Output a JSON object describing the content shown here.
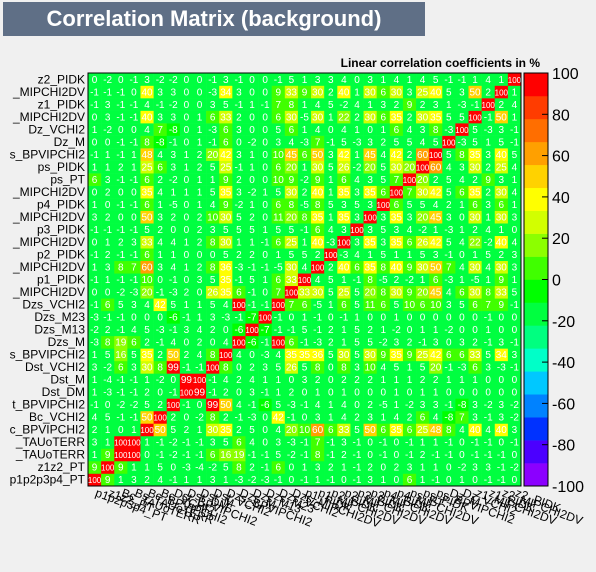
{
  "title": "Correlation Matrix (background)",
  "subtitle": "Linear correlation coefficients in %",
  "colors": {
    "background": "#f0f0f0",
    "title_bg": "#5f6f86",
    "cell_default": "#00ff40",
    "palette": [
      "#8b00ff",
      "#4b00ff",
      "#0032ff",
      "#0082ff",
      "#00c8ff",
      "#00ffc8",
      "#00ff80",
      "#00ff40",
      "#00ff00",
      "#40ff00",
      "#8cff00",
      "#d2ff00",
      "#ffff00",
      "#ffd200",
      "#ffa000",
      "#ff6e00",
      "#ff3c00",
      "#ff0000"
    ]
  },
  "chart_data": {
    "type": "heatmap",
    "title": "Correlation Matrix (background)",
    "subtitle": "Linear correlation coefficients in %",
    "zlim": [
      -100,
      100
    ],
    "zticks": [
      -100,
      -80,
      -60,
      -40,
      -20,
      0,
      20,
      40,
      60,
      80,
      100
    ],
    "variables": [
      "p1p2p3p4_PT",
      "z1z2_PT",
      "Bc_TAUoTERR",
      "Bs_TAUoTERR",
      "Bc_BPVIPCHI2",
      "Bc_VCHI2",
      "Dst_BPVIPCHI2",
      "Dst_DM",
      "Dst_M",
      "Dst_VCHI2",
      "Dzs_BPVIPCHI2",
      "Dzs_M",
      "Dzs_M13",
      "Dzs_M23",
      "Dzs_VCHI2",
      "Dzs_MIPCHI2DV",
      "p1_PIDK",
      "p1_MIPCHI2DV",
      "p2_PIDK",
      "p2_MIPCHI2DV",
      "p3_PIDK",
      "p3_MIPCHI2DV",
      "p4_PIDK",
      "p4_MIPCHI2DV",
      "ps_PT",
      "ps_PIDK",
      "ps_BPVIPCHI2",
      "Dz_M",
      "Dz_VCHI2",
      "z1_MIPCHI2DV",
      "z1_PIDK",
      "z2_MIPCHI2DV",
      "z2_PIDK"
    ],
    "row_labels_shown": [
      "z2_PIDK",
      "_MIPCHI2DV",
      "z1_PIDK",
      "_MIPCHI2DV",
      "Dz_VCHI2",
      "Dz_M",
      "s_BPVIPCHI2",
      "ps_PIDK",
      "ps_PT",
      "_MIPCHI2DV",
      "p4_PIDK",
      "_MIPCHI2DV",
      "p3_PIDK",
      "_MIPCHI2DV",
      "p2_PIDK",
      "_MIPCHI2DV",
      "p1_PIDK",
      "_MIPCHI2DV",
      "Dzs_VCHI2",
      "Dzs_M23",
      "Dzs_M13",
      "Dzs_M",
      "s_BPVIPCHI2",
      "Dst_VCHI2",
      "Dst_M",
      "Dst_DM",
      "t_BPVIPCHI2",
      "Bc_VCHI2",
      "c_BPVIPCHI2",
      "_TAUoTERR",
      "_TAUoTERR",
      "z1z2_PT",
      "p1p2p3p4_PT"
    ],
    "column_labels_shown": [
      "p1p2p3p4_PT",
      "z1z2_PT",
      "Bc_TAUoTERR",
      "Bs_TAUoTERR",
      "Bc_BPVIPCHI2",
      "Bc_VCHI2",
      "Dst_BPVIPCHI2",
      "Dst_DM",
      "Dst_M",
      "Dst_VCHI2",
      "Dzs_BPVIPCHI2",
      "Dzs_M",
      "Dzs_M13",
      "Dzs_M23",
      "Dzs_VCHI2",
      "Dzs_MIPCHI2DV",
      "p1_PIDK",
      "p1_MIPCHI2DV",
      "p2_PIDK",
      "p2_MIPCHI2DV",
      "p3_PIDK",
      "p3_MIPCHI2DV",
      "p4_PIDK",
      "p4_MIPCHI2DV",
      "ps_PT",
      "ps_PIDK",
      "ps_BPVIPCHI2",
      "Dz_M",
      "Dz_VCHI2",
      "z1_MIPCHI2DV",
      "z1_PIDK",
      "z2_MIPCHI2DV",
      "z2_PIDK"
    ],
    "matrix": [
      [
        100,
        9,
        1,
        3,
        2,
        4,
        -1,
        1,
        1,
        3,
        1,
        -3,
        -2,
        -3,
        -1,
        0,
        -1,
        1,
        -1,
        0,
        -1,
        3,
        1,
        0,
        6,
        1,
        -1,
        0,
        1,
        0,
        -1,
        -1,
        0
      ],
      [
        9,
        100,
        9,
        1,
        1,
        5,
        0,
        -3,
        -4,
        -2,
        5,
        8,
        2,
        -1,
        6,
        0,
        1,
        3,
        2,
        1,
        -1,
        2,
        0,
        2,
        3,
        1,
        1,
        0,
        -2,
        3,
        3,
        -1,
        -2
      ],
      [
        1,
        9,
        100,
        100,
        0,
        -1,
        -2,
        -1,
        -1,
        6,
        16,
        19,
        -1,
        -1,
        5,
        -2,
        -1,
        8,
        -1,
        2,
        -1,
        0,
        -1,
        0,
        -1,
        2,
        -1,
        -1,
        0,
        -1,
        -1,
        -1,
        0
      ],
      [
        3,
        1,
        100,
        100,
        1,
        -1,
        -2,
        -1,
        -1,
        3,
        5,
        6,
        4,
        0,
        3,
        -3,
        -1,
        7,
        -1,
        3,
        -1,
        0,
        -1,
        0,
        -1,
        1,
        1,
        -1,
        0,
        -1,
        -1,
        0,
        -1
      ],
      [
        2,
        1,
        0,
        1,
        100,
        50,
        5,
        2,
        1,
        30,
        35,
        2,
        5,
        0,
        4,
        20,
        10,
        60,
        6,
        33,
        5,
        50,
        6,
        35,
        6,
        25,
        48,
        8,
        4,
        40,
        4,
        40,
        3
      ],
      [
        4,
        5,
        -1,
        -1,
        50,
        100,
        2,
        0,
        -2,
        8,
        2,
        -1,
        -3,
        0,
        42,
        -1,
        0,
        3,
        1,
        4,
        2,
        3,
        1,
        4,
        2,
        6,
        4,
        -8,
        7,
        3,
        -1,
        3,
        -2
      ],
      [
        -1,
        0,
        -2,
        -2,
        5,
        2,
        100,
        -1,
        0,
        99,
        50,
        4,
        -1,
        -6,
        5,
        -3,
        -1,
        4,
        1,
        4,
        0,
        2,
        -5,
        1,
        -2,
        3,
        3,
        -1,
        -8,
        3,
        -2,
        3,
        -2
      ],
      [
        1,
        -3,
        -1,
        -1,
        2,
        0,
        -1,
        100,
        99,
        -1,
        2,
        0,
        3,
        -1,
        1,
        2,
        0,
        1,
        0,
        1,
        0,
        0,
        0,
        1,
        0,
        1,
        1,
        0,
        0,
        0,
        0,
        0,
        0
      ],
      [
        1,
        -4,
        -1,
        -1,
        1,
        -2,
        0,
        99,
        100,
        -1,
        4,
        2,
        4,
        1,
        1,
        0,
        3,
        2,
        0,
        2,
        2,
        2,
        1,
        1,
        1,
        2,
        2,
        1,
        1,
        1,
        0,
        0,
        0
      ],
      [
        3,
        -2,
        6,
        3,
        30,
        8,
        99,
        -1,
        -1,
        100,
        8,
        0,
        2,
        3,
        5,
        26,
        5,
        8,
        0,
        8,
        3,
        10,
        4,
        5,
        1,
        5,
        20,
        -1,
        -3,
        6,
        3,
        -3,
        -1
      ],
      [
        1,
        5,
        16,
        5,
        35,
        2,
        50,
        2,
        4,
        8,
        100,
        4,
        0,
        -3,
        4,
        35,
        35,
        36,
        5,
        30,
        5,
        30,
        9,
        35,
        9,
        25,
        42,
        6,
        6,
        33,
        5,
        34,
        3
      ],
      [
        -3,
        8,
        19,
        6,
        2,
        -1,
        4,
        0,
        2,
        0,
        4,
        100,
        -6,
        -1,
        100,
        6,
        -1,
        -3,
        2,
        1,
        5,
        5,
        -2,
        3,
        2,
        -1,
        3,
        0,
        3,
        2,
        -1,
        3,
        -1
      ],
      [
        -2,
        2,
        -1,
        4,
        5,
        -3,
        -1,
        3,
        4,
        2,
        0,
        -6,
        100,
        -7,
        -1,
        -1,
        5,
        -1,
        2,
        1,
        5,
        2,
        1,
        -2,
        0,
        1,
        1,
        -2,
        0,
        0,
        1,
        0,
        0
      ],
      [
        -3,
        -1,
        -1,
        0,
        0,
        0,
        -6,
        -1,
        1,
        3,
        -3,
        -1,
        -7,
        100,
        -1,
        0,
        1,
        -1,
        0,
        -1,
        1,
        0,
        0,
        1,
        0,
        0,
        0,
        0,
        0,
        0,
        -1,
        0,
        0
      ],
      [
        -1,
        6,
        5,
        3,
        4,
        42,
        5,
        1,
        1,
        5,
        4,
        100,
        -1,
        -1,
        100,
        7,
        6,
        -5,
        1,
        6,
        5,
        11,
        6,
        5,
        10,
        6,
        10,
        3,
        5,
        6,
        7,
        9,
        -1
      ],
      [
        0,
        0,
        -2,
        -3,
        20,
        -1,
        -3,
        2,
        0,
        26,
        35,
        6,
        -1,
        0,
        7,
        100,
        33,
        30,
        5,
        25,
        5,
        20,
        8,
        30,
        9,
        20,
        45,
        4,
        6,
        30,
        8,
        33,
        5
      ],
      [
        -1,
        1,
        -1,
        -1,
        10,
        0,
        -1,
        0,
        3,
        5,
        35,
        -1,
        5,
        1,
        6,
        33,
        100,
        4,
        5,
        1,
        -1,
        8,
        -5,
        2,
        -2,
        1,
        6,
        -3,
        1,
        -5,
        1,
        9,
        1
      ],
      [
        1,
        3,
        8,
        7,
        60,
        3,
        4,
        1,
        2,
        8,
        36,
        -3,
        -1,
        -1,
        -5,
        30,
        4,
        100,
        2,
        40,
        6,
        35,
        8,
        40,
        9,
        30,
        50,
        7,
        4,
        30,
        4,
        30,
        3
      ],
      [
        -1,
        2,
        -1,
        -1,
        6,
        1,
        1,
        0,
        0,
        0,
        5,
        2,
        2,
        0,
        1,
        5,
        5,
        2,
        100,
        -3,
        4,
        1,
        5,
        1,
        1,
        5,
        3,
        -1,
        0,
        1,
        5,
        2,
        3
      ],
      [
        0,
        1,
        2,
        3,
        33,
        4,
        4,
        1,
        2,
        8,
        30,
        1,
        1,
        -1,
        6,
        25,
        1,
        40,
        -3,
        100,
        3,
        35,
        3,
        35,
        6,
        26,
        42,
        5,
        4,
        22,
        -2,
        40,
        4
      ],
      [
        -1,
        -1,
        -1,
        -1,
        5,
        2,
        0,
        0,
        2,
        3,
        5,
        5,
        5,
        1,
        5,
        5,
        -1,
        6,
        4,
        3,
        100,
        3,
        5,
        3,
        4,
        -2,
        1,
        -3,
        1,
        2,
        4,
        1,
        0
      ],
      [
        3,
        2,
        0,
        0,
        50,
        3,
        2,
        0,
        2,
        10,
        30,
        5,
        2,
        0,
        11,
        20,
        8,
        35,
        1,
        35,
        3,
        100,
        3,
        35,
        3,
        20,
        45,
        3,
        0,
        30,
        1,
        30,
        3
      ],
      [
        1,
        0,
        -1,
        -1,
        6,
        1,
        -5,
        0,
        1,
        4,
        9,
        -2,
        1,
        0,
        6,
        8,
        -5,
        8,
        5,
        3,
        5,
        3,
        100,
        6,
        5,
        5,
        4,
        2,
        1,
        6,
        3,
        6,
        1
      ],
      [
        0,
        2,
        0,
        0,
        35,
        4,
        1,
        1,
        1,
        5,
        35,
        3,
        -2,
        1,
        5,
        30,
        2,
        40,
        1,
        35,
        3,
        35,
        6,
        100,
        7,
        30,
        42,
        5,
        6,
        35,
        2,
        30,
        4
      ],
      [
        6,
        3,
        -1,
        -1,
        6,
        2,
        -2,
        0,
        1,
        1,
        9,
        2,
        0,
        0,
        10,
        9,
        -2,
        9,
        1,
        6,
        4,
        3,
        5,
        7,
        100,
        20,
        2,
        5,
        4,
        2,
        9,
        3,
        1
      ],
      [
        1,
        1,
        2,
        1,
        25,
        6,
        3,
        1,
        2,
        5,
        25,
        -1,
        1,
        0,
        6,
        20,
        1,
        30,
        5,
        26,
        -2,
        20,
        5,
        30,
        20,
        100,
        60,
        4,
        3,
        30,
        2,
        25,
        4
      ],
      [
        -1,
        1,
        -1,
        1,
        48,
        4,
        3,
        1,
        2,
        20,
        42,
        3,
        1,
        0,
        10,
        45,
        6,
        50,
        3,
        42,
        1,
        45,
        4,
        42,
        2,
        60,
        100,
        5,
        8,
        35,
        3,
        40,
        5
      ],
      [
        0,
        0,
        -1,
        -1,
        8,
        -8,
        -1,
        0,
        1,
        -1,
        6,
        0,
        -2,
        0,
        3,
        4,
        -3,
        7,
        -1,
        5,
        -3,
        3,
        2,
        5,
        5,
        4,
        5,
        100,
        -3,
        5,
        1,
        5,
        -1
      ],
      [
        1,
        -2,
        0,
        0,
        4,
        7,
        -8,
        0,
        1,
        -3,
        6,
        3,
        0,
        0,
        5,
        6,
        1,
        4,
        0,
        4,
        1,
        0,
        1,
        6,
        4,
        3,
        8,
        -3,
        100,
        5,
        -3,
        3,
        -1
      ],
      [
        0,
        3,
        -1,
        -1,
        40,
        3,
        3,
        0,
        1,
        6,
        33,
        2,
        0,
        0,
        6,
        30,
        -5,
        30,
        1,
        22,
        2,
        30,
        6,
        35,
        2,
        30,
        35,
        5,
        5,
        100,
        -1,
        50,
        1
      ],
      [
        -1,
        3,
        -1,
        -1,
        4,
        -1,
        -2,
        0,
        0,
        3,
        5,
        -1,
        1,
        -1,
        7,
        8,
        1,
        4,
        5,
        -2,
        4,
        1,
        3,
        2,
        9,
        2,
        3,
        1,
        -3,
        -1,
        100,
        2,
        4
      ],
      [
        -1,
        -1,
        -1,
        0,
        40,
        3,
        3,
        0,
        0,
        -3,
        34,
        3,
        0,
        0,
        9,
        33,
        9,
        30,
        2,
        40,
        1,
        30,
        6,
        30,
        3,
        25,
        40,
        5,
        3,
        50,
        2,
        100,
        1
      ],
      [
        0,
        -2,
        0,
        -1,
        3,
        -2,
        -2,
        0,
        0,
        -1,
        3,
        -1,
        0,
        0,
        -1,
        5,
        1,
        3,
        3,
        4,
        0,
        3,
        1,
        4,
        1,
        4,
        5,
        -1,
        -1,
        1,
        4,
        1,
        100
      ]
    ]
  }
}
